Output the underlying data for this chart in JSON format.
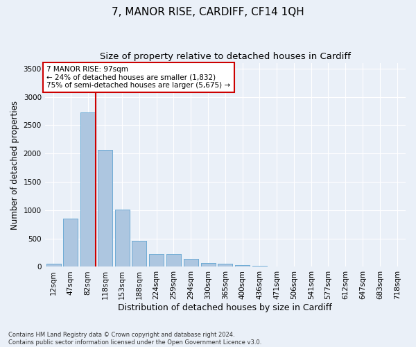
{
  "title": "7, MANOR RISE, CARDIFF, CF14 1QH",
  "subtitle": "Size of property relative to detached houses in Cardiff",
  "xlabel": "Distribution of detached houses by size in Cardiff",
  "ylabel": "Number of detached properties",
  "categories": [
    "12sqm",
    "47sqm",
    "82sqm",
    "118sqm",
    "153sqm",
    "188sqm",
    "224sqm",
    "259sqm",
    "294sqm",
    "330sqm",
    "365sqm",
    "400sqm",
    "436sqm",
    "471sqm",
    "506sqm",
    "541sqm",
    "577sqm",
    "612sqm",
    "647sqm",
    "683sqm",
    "718sqm"
  ],
  "values": [
    60,
    850,
    2720,
    2060,
    1010,
    460,
    230,
    230,
    135,
    65,
    50,
    35,
    20,
    10,
    5,
    0,
    0,
    0,
    0,
    0,
    0
  ],
  "bar_color": "#adc6e0",
  "bar_edge_color": "#6aaad4",
  "vline_color": "#cc0000",
  "annotation_text": "7 MANOR RISE: 97sqm\n← 24% of detached houses are smaller (1,832)\n75% of semi-detached houses are larger (5,675) →",
  "annotation_box_color": "#ffffff",
  "annotation_box_edge_color": "#cc0000",
  "ylim": [
    0,
    3600
  ],
  "yticks": [
    0,
    500,
    1000,
    1500,
    2000,
    2500,
    3000,
    3500
  ],
  "title_fontsize": 11,
  "subtitle_fontsize": 9.5,
  "xlabel_fontsize": 9,
  "ylabel_fontsize": 8.5,
  "tick_fontsize": 7.5,
  "ann_fontsize": 7.5,
  "footer_text": "Contains HM Land Registry data © Crown copyright and database right 2024.\nContains public sector information licensed under the Open Government Licence v3.0.",
  "bg_color": "#eaf0f8",
  "grid_color": "#ffffff"
}
